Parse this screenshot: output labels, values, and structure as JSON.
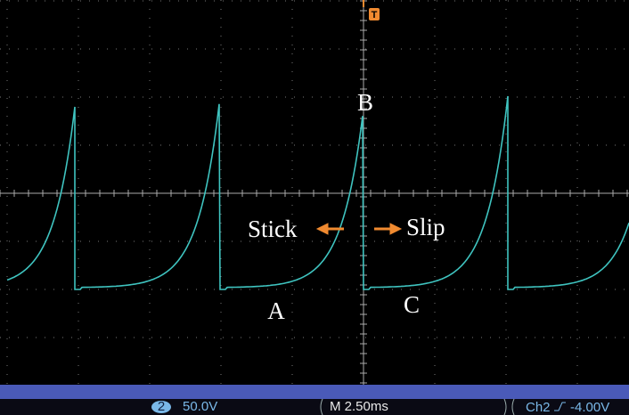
{
  "screen": {
    "trigger_marker": "T",
    "annotations": {
      "peak": "B",
      "stick_end": "A",
      "slip_end": "C",
      "stick": "Stick",
      "slip": "Slip"
    },
    "status_bar": {
      "channel": "2",
      "channel_scale": "50.0V",
      "timebase": "M 2.50ms",
      "trigger_source": "Ch2",
      "trigger_level": "-4.00V"
    }
  }
}
